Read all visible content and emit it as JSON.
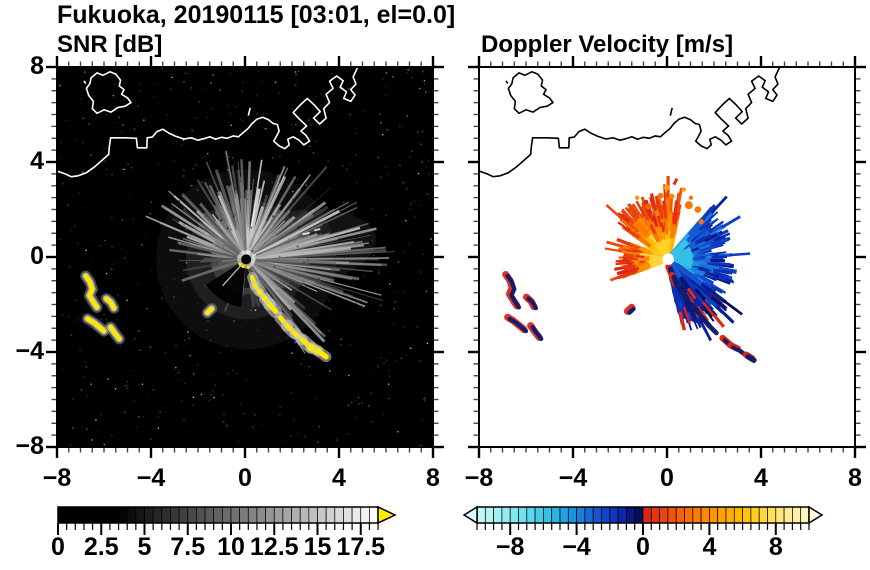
{
  "title": "Fukuoka, 20190115 [03:01, el=0.0]",
  "chart_data": {
    "type": "heatmap",
    "subtype": "radar-ppi-pair",
    "axes": {
      "xlim": [
        -8,
        8
      ],
      "ylim": [
        -8,
        8
      ],
      "x_tick_labels": [
        "−8",
        "−4",
        "0",
        "4",
        "8"
      ],
      "x_tick_values": [
        -8,
        -4,
        0,
        4,
        8
      ],
      "y_tick_labels": [
        "8",
        "4",
        "0",
        "−4",
        "−8"
      ],
      "y_tick_values": [
        8,
        4,
        0,
        -4,
        -8
      ],
      "minor_tick_step": 0.5
    },
    "radar_center": [
      0.05,
      -0.1
    ],
    "panels": [
      {
        "name": "snr",
        "title": "SNR [dB]",
        "background": "#000000",
        "coast_color": "#ffffff",
        "colorbar": {
          "min": 0,
          "max": 18.5,
          "segment_step": 0.5,
          "tick_labels": [
            "0",
            "2.5",
            "5",
            "7.5",
            "10",
            "12.5",
            "15",
            "17.5"
          ],
          "tick_values": [
            0,
            2.5,
            5,
            7.5,
            10,
            12.5,
            15,
            17.5
          ],
          "over_arrow_color": "#ffee00",
          "ramp": {
            "black_until": 3.5,
            "white_at": 18.5
          }
        },
        "clutter_ray_sectors": [
          {
            "az": [
              -78,
              -10
            ],
            "count": 60,
            "r": [
              1.2,
              4.8
            ],
            "lum": [
              80,
              235
            ]
          },
          {
            "az": [
              -10,
              34
            ],
            "count": 46,
            "r": [
              1.0,
              4.3
            ],
            "lum": [
              90,
              240
            ]
          },
          {
            "az": [
              34,
              62
            ],
            "count": 30,
            "r": [
              1.2,
              5.2
            ],
            "lum": [
              70,
              215
            ]
          },
          {
            "az": [
              62,
              112
            ],
            "count": 70,
            "r": [
              1.5,
              6.3
            ],
            "lum": [
              60,
              215
            ]
          },
          {
            "az": [
              112,
              150
            ],
            "count": 30,
            "r": [
              1.0,
              4.8
            ],
            "lum": [
              50,
              185
            ]
          },
          {
            "az": [
              150,
              206
            ],
            "count": 12,
            "r": [
              0.6,
              2.4
            ],
            "lum": [
              35,
              110
            ]
          },
          {
            "az": [
              206,
              242
            ],
            "count": 8,
            "r": [
              0.7,
              2.0
            ],
            "lum": [
              35,
              100
            ]
          },
          {
            "az": [
              242,
              296
            ],
            "count": 20,
            "r": [
              0.9,
              3.8
            ],
            "lum": [
              55,
              170
            ]
          },
          {
            "az": [
              296,
              326
            ],
            "count": 14,
            "r": [
              0.9,
              3.2
            ],
            "lum": [
              55,
              160
            ]
          }
        ],
        "echo_chain_color": "#ffe800",
        "echo_halo_color": "#c8c8c8"
      },
      {
        "name": "velocity",
        "title": "Doppler Velocity [m/s]",
        "background": "#ffffff",
        "coast_color": "#000000",
        "colorbar": {
          "min": -10,
          "max": 10,
          "segment_step": 0.5,
          "tick_labels": [
            "−8",
            "−4",
            "0",
            "4",
            "8"
          ],
          "tick_values": [
            -8,
            -4,
            0,
            4,
            8
          ],
          "under_arrow_color": "#dcf9f9",
          "over_arrow_color": "#fffbdc"
        },
        "fans": [
          {
            "az": [
              -55,
              14
            ],
            "r": [
              1.2,
              2.9
            ],
            "v_in": 6.5,
            "v_out": 1.1,
            "rays": 150
          },
          {
            "az": [
              248,
              292
            ],
            "r": [
              0.9,
              2.35
            ],
            "v_in": 6.8,
            "v_out": 0.9,
            "rays": 95
          },
          {
            "az": [
              40,
              168
            ],
            "r": [
              1.1,
              3.0
            ],
            "v_in": -5.2,
            "v_out": -1.6,
            "rays": 230
          },
          {
            "az": [
              126,
              170
            ],
            "r": [
              1.4,
              3.3
            ],
            "v_in": -2.0,
            "v_out": -0.35,
            "rays": 80
          }
        ],
        "bands": [
          {
            "az": [
              -48,
              10
            ],
            "r": [
              0.26,
              0.85
            ],
            "v": 6.9
          },
          {
            "az": [
              252,
              286
            ],
            "r": [
              0.26,
              0.8
            ],
            "v": 7.2
          },
          {
            "az": [
              60,
              112
            ],
            "r": [
              0.26,
              1.05
            ],
            "v": -5.8
          }
        ],
        "specks": {
          "points": [
            [
              -0.85,
              2.2
            ],
            [
              -0.3,
              2.55
            ],
            [
              0.3,
              2.65
            ],
            [
              0.85,
              2.25
            ],
            [
              1.3,
              1.95
            ],
            [
              -1.15,
              2.4
            ],
            [
              0.1,
              3.0
            ],
            [
              1.05,
              2.55
            ],
            [
              1.5,
              1.6
            ],
            [
              0.6,
              2.9
            ]
          ],
          "v": 3.5
        },
        "red_dash": [
          [
            0.3,
            3.05
          ],
          [
            0.42,
            3.3
          ]
        ]
      }
    ],
    "velocity_colormap": {
      "neg": [
        [
          -10,
          "#ccf6f6"
        ],
        [
          -9,
          "#aef0f2"
        ],
        [
          -8,
          "#8fe9ef"
        ],
        [
          -7,
          "#63dcec"
        ],
        [
          -6,
          "#3cc8e8"
        ],
        [
          -5,
          "#25ace4"
        ],
        [
          -4,
          "#1b88dd"
        ],
        [
          -3,
          "#155fd2"
        ],
        [
          -2,
          "#0f3cc4"
        ],
        [
          -1,
          "#0a1f9e"
        ],
        [
          -0.5,
          "#071266"
        ],
        [
          -0.05,
          "#060d55"
        ]
      ],
      "pos": [
        [
          0.05,
          "#d92118"
        ],
        [
          1,
          "#e83c0e"
        ],
        [
          2,
          "#f55a06"
        ],
        [
          3,
          "#fb7502"
        ],
        [
          4,
          "#ff8d00"
        ],
        [
          5,
          "#ffa500"
        ],
        [
          6,
          "#ffbe00"
        ],
        [
          7,
          "#ffd32e"
        ],
        [
          8,
          "#ffe36b"
        ],
        [
          9,
          "#ffef9e"
        ],
        [
          10,
          "#fff7c8"
        ]
      ]
    },
    "coastline": {
      "mainland": [
        [
          -8,
          3.62
        ],
        [
          -7.65,
          3.5
        ],
        [
          -7.4,
          3.38
        ],
        [
          -7.1,
          3.42
        ],
        [
          -6.75,
          3.55
        ],
        [
          -6.4,
          3.8
        ],
        [
          -6.05,
          4.1
        ],
        [
          -5.8,
          4.32
        ],
        [
          -5.78,
          4.6
        ],
        [
          -5.72,
          5.02
        ],
        [
          -5.1,
          5.02
        ],
        [
          -4.62,
          5.0
        ],
        [
          -4.58,
          4.6
        ],
        [
          -4.18,
          4.6
        ],
        [
          -4.16,
          5.02
        ],
        [
          -3.95,
          5.05
        ],
        [
          -3.75,
          5.28
        ],
        [
          -3.5,
          5.38
        ],
        [
          -3.25,
          5.22
        ],
        [
          -2.95,
          5.08
        ],
        [
          -2.6,
          4.97
        ],
        [
          -2.3,
          5.02
        ],
        [
          -2.0,
          4.92
        ],
        [
          -1.75,
          4.98
        ],
        [
          -1.5,
          5.06
        ],
        [
          -1.25,
          4.96
        ],
        [
          -1.0,
          5.04
        ],
        [
          -0.75,
          5.0
        ],
        [
          -0.5,
          5.1
        ],
        [
          -0.28,
          5.06
        ],
        [
          -0.1,
          5.22
        ],
        [
          0.12,
          5.4
        ],
        [
          0.3,
          5.62
        ],
        [
          0.5,
          5.8
        ],
        [
          0.75,
          5.88
        ],
        [
          1.0,
          5.78
        ],
        [
          1.2,
          5.62
        ],
        [
          1.38,
          5.58
        ],
        [
          1.45,
          5.3
        ],
        [
          1.32,
          5.05
        ],
        [
          1.22,
          4.88
        ],
        [
          1.45,
          4.68
        ],
        [
          1.7,
          4.56
        ],
        [
          1.88,
          4.72
        ],
        [
          1.82,
          4.96
        ],
        [
          2.05,
          5.06
        ],
        [
          2.3,
          4.92
        ],
        [
          2.5,
          4.72
        ],
        [
          2.75,
          4.88
        ],
        [
          2.6,
          5.12
        ],
        [
          2.38,
          5.3
        ],
        [
          2.62,
          5.52
        ],
        [
          2.3,
          5.82
        ],
        [
          2.05,
          6.08
        ],
        [
          2.35,
          6.4
        ],
        [
          2.65,
          6.68
        ],
        [
          2.95,
          6.4
        ],
        [
          3.2,
          6.12
        ],
        [
          2.92,
          5.85
        ],
        [
          3.18,
          5.6
        ],
        [
          3.45,
          5.85
        ],
        [
          3.35,
          6.25
        ],
        [
          3.6,
          6.5
        ],
        [
          3.45,
          6.85
        ],
        [
          3.75,
          7.1
        ],
        [
          3.6,
          7.4
        ],
        [
          3.9,
          7.62
        ],
        [
          4.18,
          7.42
        ],
        [
          4.05,
          7.15
        ],
        [
          4.32,
          6.95
        ],
        [
          4.2,
          6.68
        ],
        [
          4.5,
          6.55
        ],
        [
          4.68,
          6.82
        ],
        [
          4.5,
          7.05
        ],
        [
          4.72,
          7.28
        ],
        [
          4.6,
          7.58
        ],
        [
          4.82,
          8.05
        ]
      ],
      "island": [
        [
          -6.55,
          7.55
        ],
        [
          -6.3,
          7.75
        ],
        [
          -6.05,
          7.65
        ],
        [
          -5.75,
          7.8
        ],
        [
          -5.5,
          7.7
        ],
        [
          -5.3,
          7.45
        ],
        [
          -5.35,
          7.2
        ],
        [
          -5.15,
          7.05
        ],
        [
          -5.25,
          6.85
        ],
        [
          -5.0,
          6.7
        ],
        [
          -4.85,
          6.5
        ],
        [
          -5.1,
          6.35
        ],
        [
          -5.4,
          6.3
        ],
        [
          -5.7,
          6.1
        ],
        [
          -6.0,
          6.2
        ],
        [
          -6.3,
          6.05
        ],
        [
          -6.5,
          6.25
        ],
        [
          -6.45,
          6.55
        ],
        [
          -6.65,
          6.8
        ],
        [
          -6.75,
          7.1
        ],
        [
          -6.6,
          7.3
        ],
        [
          -6.55,
          7.55
        ]
      ],
      "islet": [
        [
          -6.85,
          7.42
        ],
        [
          -6.78,
          7.3
        ]
      ],
      "tick_mark": [
        [
          0.14,
          5.95
        ],
        [
          0.22,
          6.28
        ]
      ]
    },
    "ship_echoes": [
      [
        [
          -6.78,
          -0.8
        ],
        [
          -6.6,
          -1.05
        ],
        [
          -6.5,
          -1.35
        ],
        [
          -6.62,
          -1.62
        ],
        [
          -6.45,
          -1.9
        ],
        [
          -6.3,
          -2.12
        ]
      ],
      [
        [
          -5.9,
          -1.75
        ],
        [
          -5.7,
          -1.92
        ],
        [
          -5.58,
          -2.15
        ]
      ],
      [
        [
          -6.7,
          -2.6
        ],
        [
          -6.45,
          -2.75
        ],
        [
          -6.2,
          -2.95
        ],
        [
          -6.0,
          -3.12
        ]
      ],
      [
        [
          -5.72,
          -2.95
        ],
        [
          -5.55,
          -3.2
        ],
        [
          -5.35,
          -3.45
        ]
      ],
      [
        [
          -1.6,
          -2.35
        ],
        [
          -1.42,
          -2.18
        ]
      ]
    ],
    "echo_chain": [
      [
        0.15,
        -0.5
      ],
      [
        0.3,
        -0.85
      ],
      [
        0.42,
        -1.2
      ],
      [
        0.6,
        -1.45
      ],
      [
        0.85,
        -1.75
      ],
      [
        1.05,
        -2.0
      ],
      [
        1.3,
        -2.3
      ],
      [
        1.5,
        -2.55
      ],
      [
        1.8,
        -2.9
      ],
      [
        2.1,
        -3.2
      ],
      [
        2.45,
        -3.5
      ],
      [
        2.8,
        -3.8
      ],
      [
        3.1,
        -3.95
      ],
      [
        3.45,
        -4.2
      ],
      [
        3.7,
        -4.35
      ]
    ]
  }
}
